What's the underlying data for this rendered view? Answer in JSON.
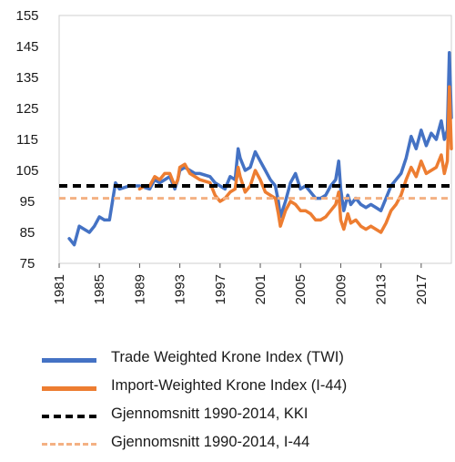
{
  "chart_data": {
    "type": "line",
    "xlim": [
      1981,
      2020
    ],
    "ylim": [
      75,
      155
    ],
    "y_ticks": [
      "75",
      "85",
      "95",
      "105",
      "115",
      "125",
      "135",
      "145",
      "155"
    ],
    "x_ticks": [
      "1981",
      "1985",
      "1989",
      "1993",
      "1997",
      "2001",
      "2005",
      "2009",
      "2013",
      "2017"
    ],
    "grid": false,
    "legend_position": "bottom",
    "series": [
      {
        "name": "Trade Weighted Krone Index (TWI)",
        "color": "#4472c4",
        "style": "solid",
        "x": [
          1982,
          1982.5,
          1983,
          1983.5,
          1984,
          1984.5,
          1985,
          1985.5,
          1986,
          1986.4,
          1986.6,
          1987,
          1988,
          1989,
          1990,
          1990.5,
          1991,
          1991.5,
          1992,
          1992.5,
          1992.8,
          1993,
          1993.5,
          1994,
          1994.5,
          1995,
          1996,
          1996.5,
          1997,
          1997.5,
          1998,
          1998.5,
          1998.8,
          1999,
          1999.5,
          2000,
          2000.5,
          2001,
          2001.5,
          2002,
          2002.5,
          2002.8,
          2003,
          2003.5,
          2004,
          2004.5,
          2005,
          2005.5,
          2006,
          2006.5,
          2007,
          2007.5,
          2008,
          2008.5,
          2008.8,
          2009,
          2009.3,
          2009.7,
          2010,
          2010.5,
          2011,
          2011.5,
          2012,
          2012.5,
          2013,
          2013.5,
          2014,
          2014.5,
          2015,
          2015.5,
          2016,
          2016.5,
          2017,
          2017.5,
          2018,
          2018.5,
          2019,
          2019.3,
          2019.6,
          2019.8,
          2020
        ],
        "values": [
          83,
          81,
          87,
          86,
          85,
          87,
          90,
          89,
          89,
          97,
          101,
          99,
          100,
          100,
          99,
          102,
          101,
          102,
          103,
          99,
          102,
          105,
          106,
          105,
          104,
          104,
          103,
          101,
          100,
          99,
          103,
          102,
          112,
          109,
          105,
          106,
          111,
          108,
          105,
          102,
          100,
          95,
          90,
          95,
          101,
          104,
          99,
          100,
          98,
          96,
          96,
          97,
          100,
          102,
          108,
          99,
          92,
          97,
          94,
          96,
          94,
          93,
          94,
          93,
          92,
          96,
          100,
          102,
          104,
          109,
          116,
          112,
          118,
          113,
          117,
          115,
          121,
          115,
          118,
          143,
          122
        ]
      },
      {
        "name": "Import-Weighted Krone Index (I-44)",
        "color": "#ed7d31",
        "style": "solid",
        "x": [
          1989,
          1989.5,
          1990,
          1990.5,
          1991,
          1991.5,
          1992,
          1992.5,
          1992.8,
          1993,
          1993.5,
          1994,
          1994.5,
          1995,
          1996,
          1996.5,
          1997,
          1997.5,
          1998,
          1998.5,
          1998.8,
          1999,
          1999.5,
          2000,
          2000.5,
          2001,
          2001.5,
          2002,
          2002.5,
          2002.8,
          2003,
          2003.5,
          2004,
          2004.5,
          2005,
          2005.5,
          2006,
          2006.5,
          2007,
          2007.5,
          2008,
          2008.5,
          2008.8,
          2009,
          2009.3,
          2009.7,
          2010,
          2010.5,
          2011,
          2011.5,
          2012,
          2012.5,
          2013,
          2013.5,
          2014,
          2014.5,
          2015,
          2015.5,
          2016,
          2016.5,
          2017,
          2017.5,
          2018,
          2018.5,
          2019,
          2019.3,
          2019.6,
          2019.8,
          2020
        ],
        "values": [
          99,
          100,
          100,
          103,
          102,
          104,
          104,
          100,
          102,
          106,
          107,
          104,
          103,
          102,
          101,
          97,
          95,
          96,
          98,
          99,
          106,
          103,
          98,
          100,
          105,
          102,
          98,
          97,
          96,
          91,
          87,
          92,
          95,
          94,
          92,
          92,
          91,
          89,
          89,
          90,
          92,
          94,
          98,
          89,
          86,
          91,
          88,
          89,
          87,
          86,
          87,
          86,
          85,
          88,
          92,
          94,
          97,
          102,
          106,
          103,
          108,
          104,
          105,
          106,
          110,
          104,
          108,
          132,
          112
        ]
      },
      {
        "name": "Gjennomsnitt 1990-2014,  KKI",
        "color": "#000000",
        "style": "dashed",
        "x": [
          1981,
          2020
        ],
        "values": [
          100,
          100
        ]
      },
      {
        "name": "Gjennomsnitt 1990-2014, I-44",
        "color": "#f4b183",
        "style": "dashed",
        "x": [
          1981,
          2020
        ],
        "values": [
          96,
          96
        ]
      }
    ]
  }
}
